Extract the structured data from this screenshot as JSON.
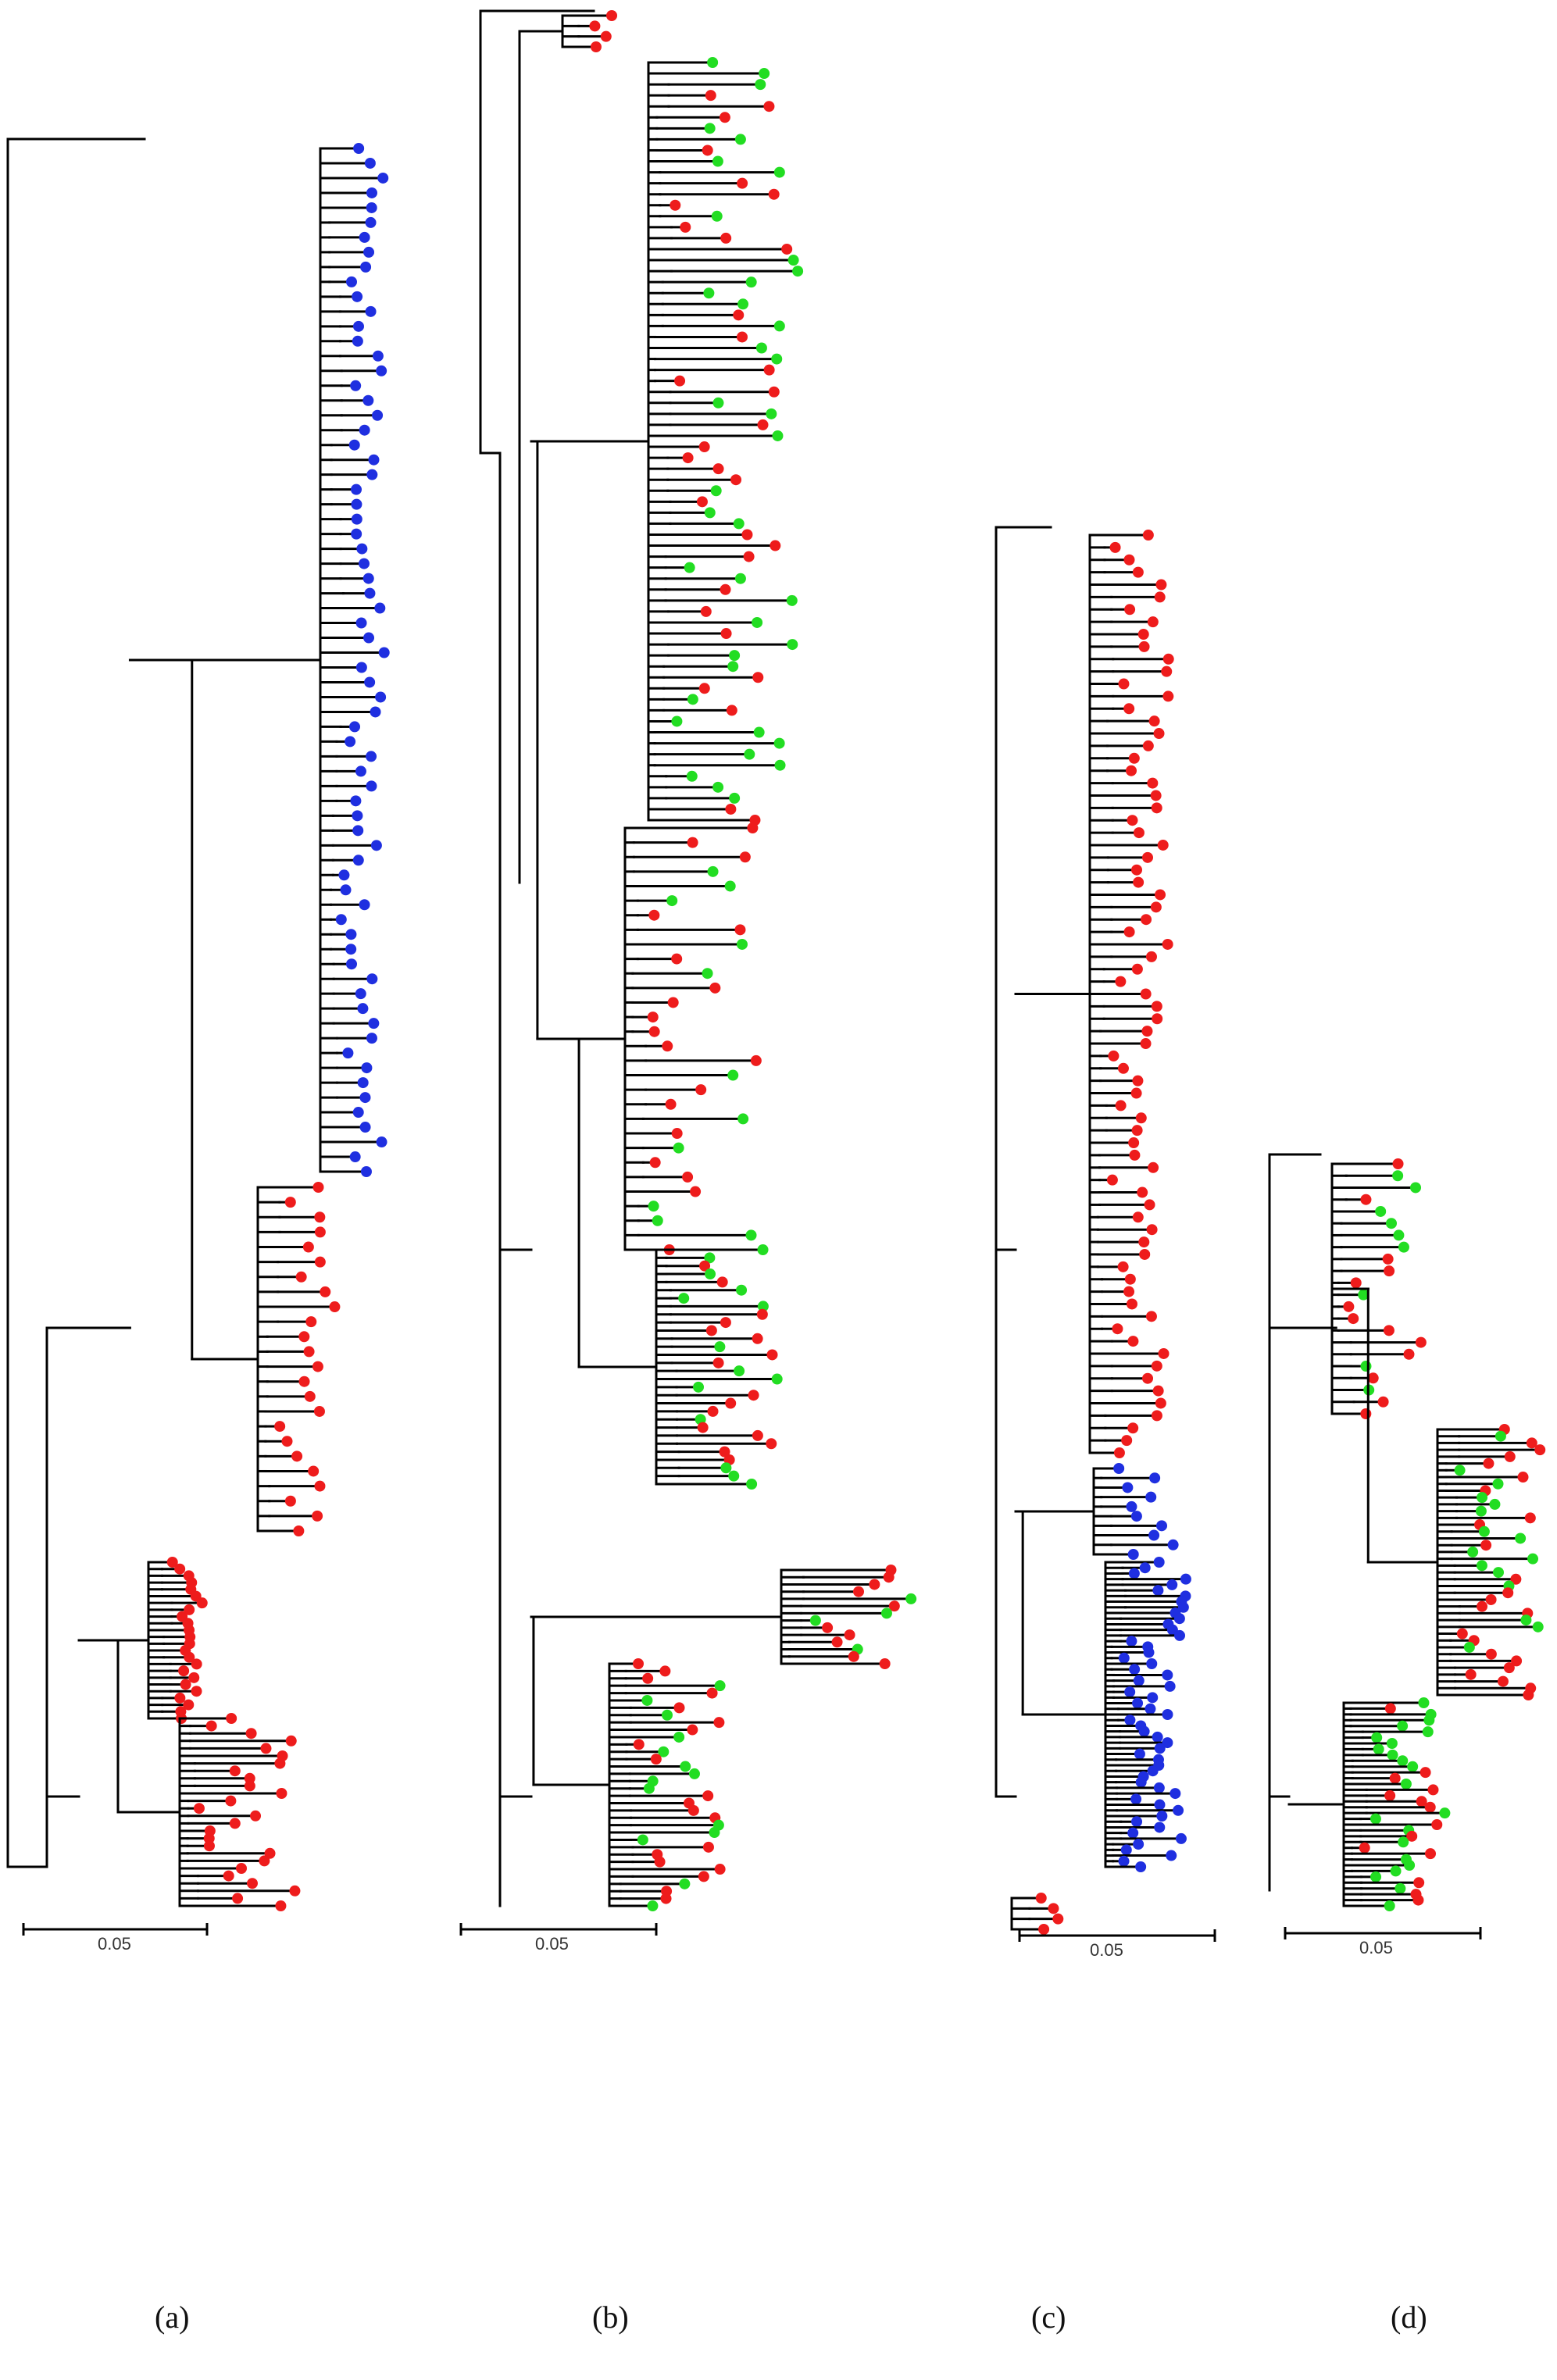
{
  "colors": {
    "blue": "#1f2fe0",
    "red": "#ee1c1c",
    "green": "#22dd22",
    "branch": "#000000"
  },
  "scale_bar_label": "0.05",
  "panels": [
    {
      "label": "(a)",
      "clades": [
        {
          "color": "blue",
          "count": 70
        },
        {
          "color": "red",
          "count": 24
        },
        {
          "color": "red",
          "count": 24
        },
        {
          "color": "red",
          "count": 26
        },
        {
          "color": "red",
          "count": 8
        }
      ]
    },
    {
      "label": "(b)",
      "clades": [
        {
          "color": "red",
          "count": 4
        },
        {
          "color": "mix",
          "count": 70
        },
        {
          "color": "mix",
          "count": 30
        },
        {
          "color": "mix",
          "count": 30
        },
        {
          "color": "mix",
          "count": 14
        },
        {
          "color": "mix",
          "count": 34
        }
      ]
    },
    {
      "label": "(c)",
      "clades": [
        {
          "color": "red",
          "count": 75
        },
        {
          "color": "blue",
          "count": 10
        },
        {
          "color": "blue",
          "count": 55
        },
        {
          "color": "red",
          "count": 4
        }
      ]
    },
    {
      "label": "(d)",
      "clades": [
        {
          "color": "mix",
          "count": 22
        },
        {
          "color": "mix",
          "count": 40
        },
        {
          "color": "mix",
          "count": 36
        }
      ]
    }
  ]
}
